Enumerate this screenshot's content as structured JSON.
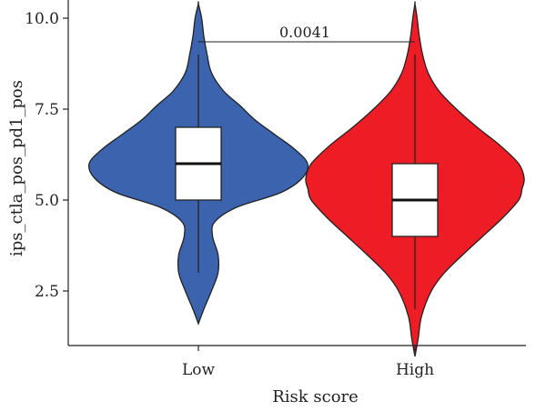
{
  "chart_data": {
    "type": "violin",
    "xlabel": "Risk score",
    "ylabel": "ips_ctla_pos_pd1_pos",
    "ylim": [
      1,
      10.5
    ],
    "yticks": [
      2.5,
      5.0,
      7.5,
      10.0
    ],
    "ytick_labels": [
      "2.5",
      "5.0",
      "7.5",
      "10.0"
    ],
    "categories": [
      "Low",
      "High"
    ],
    "series": [
      {
        "name": "Low",
        "color": "#3c63ad",
        "box": {
          "min": 3.0,
          "q1": 5.0,
          "median": 6.0,
          "q3": 7.0,
          "max": 9.0
        },
        "violin_range": [
          1.6,
          10.4
        ],
        "density": [
          [
            1.6,
            0.0
          ],
          [
            2.0,
            0.05
          ],
          [
            2.5,
            0.12
          ],
          [
            3.0,
            0.18
          ],
          [
            3.5,
            0.18
          ],
          [
            4.0,
            0.13
          ],
          [
            4.4,
            0.15
          ],
          [
            4.8,
            0.35
          ],
          [
            5.2,
            0.75
          ],
          [
            5.6,
            0.95
          ],
          [
            6.0,
            1.0
          ],
          [
            6.4,
            0.88
          ],
          [
            6.8,
            0.7
          ],
          [
            7.2,
            0.52
          ],
          [
            7.6,
            0.38
          ],
          [
            8.0,
            0.23
          ],
          [
            8.5,
            0.12
          ],
          [
            9.0,
            0.08
          ],
          [
            9.5,
            0.05
          ],
          [
            10.0,
            0.03
          ],
          [
            10.4,
            0.0
          ]
        ]
      },
      {
        "name": "High",
        "color": "#ee1c25",
        "box": {
          "min": 2.0,
          "q1": 4.0,
          "median": 5.0,
          "q3": 6.0,
          "max": 9.0
        },
        "violin_range": [
          0.7,
          10.4
        ],
        "density": [
          [
            0.7,
            0.0
          ],
          [
            1.2,
            0.03
          ],
          [
            1.8,
            0.06
          ],
          [
            2.5,
            0.15
          ],
          [
            3.0,
            0.27
          ],
          [
            3.5,
            0.44
          ],
          [
            4.0,
            0.62
          ],
          [
            4.5,
            0.8
          ],
          [
            5.0,
            0.95
          ],
          [
            5.3,
            0.98
          ],
          [
            5.6,
            1.0
          ],
          [
            6.0,
            0.95
          ],
          [
            6.5,
            0.78
          ],
          [
            7.0,
            0.57
          ],
          [
            7.5,
            0.38
          ],
          [
            8.0,
            0.22
          ],
          [
            8.5,
            0.12
          ],
          [
            9.0,
            0.07
          ],
          [
            9.5,
            0.04
          ],
          [
            10.0,
            0.02
          ],
          [
            10.4,
            0.0
          ]
        ]
      }
    ],
    "annotations": [
      {
        "text": "0.0041",
        "between": [
          "Low",
          "High"
        ],
        "y": 9.35
      }
    ]
  }
}
